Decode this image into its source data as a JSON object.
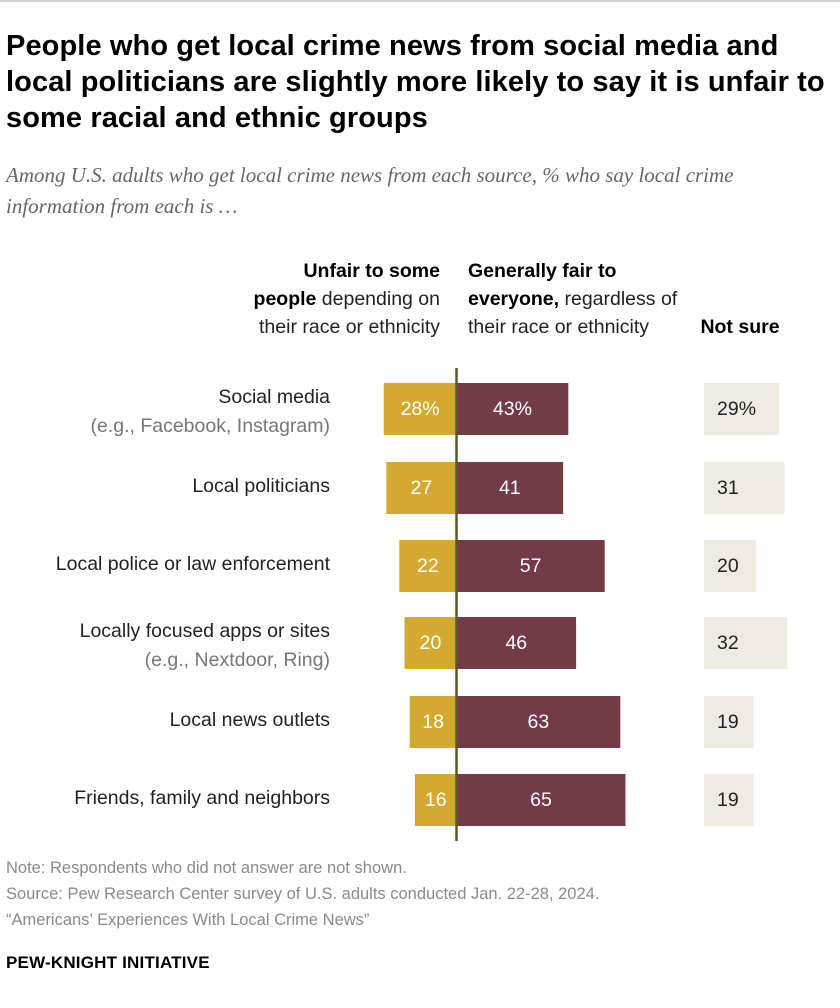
{
  "title": "People who get local crime news from social media and local politicians are slightly more likely to say it is unfair to some racial and ethnic groups",
  "subtitle": "Among U.S. adults who get local crime news from each source, % who say local crime information from each is …",
  "headers": {
    "unfair_bold": "Unfair to some people",
    "unfair_rest": " depending on their race or ethnicity",
    "fair_bold": "Generally fair to everyone,",
    "fair_rest": " regardless of their race or ethnicity",
    "not_sure": "Not sure"
  },
  "colors": {
    "unfair": "#d4a92f",
    "fair": "#733a47",
    "not_sure": "#eeebe4",
    "axis": "#5c5a24"
  },
  "chart_data": {
    "type": "bar",
    "orientation": "horizontal-diverging",
    "categories": [
      {
        "label": "Social media",
        "sub": "(e.g., Facebook, Instagram)"
      },
      {
        "label": "Local politicians",
        "sub": ""
      },
      {
        "label": "Local police or law enforcement",
        "sub": ""
      },
      {
        "label": "Locally focused apps or sites",
        "sub": "(e.g., Nextdoor, Ring)"
      },
      {
        "label": "Local news outlets",
        "sub": ""
      },
      {
        "label": "Friends, family and neighbors",
        "sub": ""
      }
    ],
    "series": [
      {
        "name": "Unfair to some people depending on their race or ethnicity",
        "values": [
          28,
          27,
          22,
          20,
          18,
          16
        ],
        "labels": [
          "28%",
          "27",
          "22",
          "20",
          "18",
          "16"
        ]
      },
      {
        "name": "Generally fair to everyone, regardless of their race or ethnicity",
        "values": [
          43,
          41,
          57,
          46,
          63,
          65
        ],
        "labels": [
          "43%",
          "41",
          "57",
          "46",
          "63",
          "65"
        ]
      },
      {
        "name": "Not sure",
        "values": [
          29,
          31,
          20,
          32,
          19,
          19
        ],
        "labels": [
          "29%",
          "31",
          "20",
          "32",
          "19",
          "19"
        ]
      }
    ],
    "unit": "%"
  },
  "footer": {
    "note": "Note: Respondents who did not answer are not shown.",
    "source": "Source: Pew Research Center survey of U.S. adults conducted Jan. 22-28, 2024.",
    "report": "“Americans’ Experiences With Local Crime News”",
    "brand": "PEW-KNIGHT INITIATIVE"
  }
}
